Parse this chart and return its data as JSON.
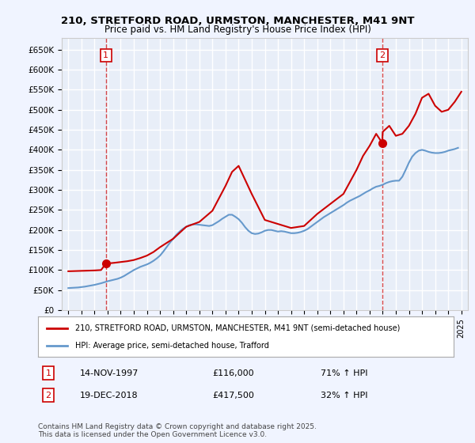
{
  "title_line1": "210, STRETFORD ROAD, URMSTON, MANCHESTER, M41 9NT",
  "title_line2": "Price paid vs. HM Land Registry's House Price Index (HPI)",
  "background_color": "#f0f4ff",
  "plot_bg_color": "#e8eef8",
  "grid_color": "#ffffff",
  "ylabel_ticks": [
    "£0",
    "£50K",
    "£100K",
    "£150K",
    "£200K",
    "£250K",
    "£300K",
    "£350K",
    "£400K",
    "£450K",
    "£500K",
    "£550K",
    "£600K",
    "£650K"
  ],
  "ytick_values": [
    0,
    50000,
    100000,
    150000,
    200000,
    250000,
    300000,
    350000,
    400000,
    450000,
    500000,
    550000,
    600000,
    650000
  ],
  "ylim": [
    0,
    680000
  ],
  "xlim_start": 1994.5,
  "xlim_end": 2025.5,
  "xtick_years": [
    1995,
    1996,
    1997,
    1998,
    1999,
    2000,
    2001,
    2002,
    2003,
    2004,
    2005,
    2006,
    2007,
    2008,
    2009,
    2010,
    2011,
    2012,
    2013,
    2014,
    2015,
    2016,
    2017,
    2018,
    2019,
    2020,
    2021,
    2022,
    2023,
    2024,
    2025
  ],
  "sale1_x": 1997.87,
  "sale1_y": 116000,
  "sale1_label": "1",
  "sale1_date": "14-NOV-1997",
  "sale1_price": "£116,000",
  "sale1_hpi": "71% ↑ HPI",
  "sale2_x": 2018.96,
  "sale2_y": 417500,
  "sale2_label": "2",
  "sale2_date": "19-DEC-2018",
  "sale2_price": "£417,500",
  "sale2_hpi": "32% ↑ HPI",
  "red_line_color": "#cc0000",
  "blue_line_color": "#6699cc",
  "sale_dot_color": "#cc0000",
  "legend_label_red": "210, STRETFORD ROAD, URMSTON, MANCHESTER, M41 9NT (semi-detached house)",
  "legend_label_blue": "HPI: Average price, semi-detached house, Trafford",
  "footer_text": "Contains HM Land Registry data © Crown copyright and database right 2025.\nThis data is licensed under the Open Government Licence v3.0.",
  "hpi_data_x": [
    1995.0,
    1995.25,
    1995.5,
    1995.75,
    1996.0,
    1996.25,
    1996.5,
    1996.75,
    1997.0,
    1997.25,
    1997.5,
    1997.75,
    1998.0,
    1998.25,
    1998.5,
    1998.75,
    1999.0,
    1999.25,
    1999.5,
    1999.75,
    2000.0,
    2000.25,
    2000.5,
    2000.75,
    2001.0,
    2001.25,
    2001.5,
    2001.75,
    2002.0,
    2002.25,
    2002.5,
    2002.75,
    2003.0,
    2003.25,
    2003.5,
    2003.75,
    2004.0,
    2004.25,
    2004.5,
    2004.75,
    2005.0,
    2005.25,
    2005.5,
    2005.75,
    2006.0,
    2006.25,
    2006.5,
    2006.75,
    2007.0,
    2007.25,
    2007.5,
    2007.75,
    2008.0,
    2008.25,
    2008.5,
    2008.75,
    2009.0,
    2009.25,
    2009.5,
    2009.75,
    2010.0,
    2010.25,
    2010.5,
    2010.75,
    2011.0,
    2011.25,
    2011.5,
    2011.75,
    2012.0,
    2012.25,
    2012.5,
    2012.75,
    2013.0,
    2013.25,
    2013.5,
    2013.75,
    2014.0,
    2014.25,
    2014.5,
    2014.75,
    2015.0,
    2015.25,
    2015.5,
    2015.75,
    2016.0,
    2016.25,
    2016.5,
    2016.75,
    2017.0,
    2017.25,
    2017.5,
    2017.75,
    2018.0,
    2018.25,
    2018.5,
    2018.75,
    2019.0,
    2019.25,
    2019.5,
    2019.75,
    2020.0,
    2020.25,
    2020.5,
    2020.75,
    2021.0,
    2021.25,
    2021.5,
    2021.75,
    2022.0,
    2022.25,
    2022.5,
    2022.75,
    2023.0,
    2023.25,
    2023.5,
    2023.75,
    2024.0,
    2024.25,
    2024.5,
    2024.75
  ],
  "hpi_data_y": [
    55000,
    55500,
    56000,
    56500,
    57500,
    58500,
    60000,
    61500,
    63000,
    65000,
    67000,
    69500,
    72000,
    74000,
    76000,
    78000,
    81000,
    85000,
    90000,
    95000,
    100000,
    104000,
    108000,
    111000,
    114000,
    118000,
    123000,
    129000,
    136000,
    146000,
    157000,
    168000,
    178000,
    188000,
    196000,
    203000,
    208000,
    212000,
    214000,
    214000,
    213000,
    212000,
    211000,
    210000,
    212000,
    217000,
    222000,
    228000,
    233000,
    238000,
    238000,
    233000,
    227000,
    218000,
    207000,
    198000,
    192000,
    190000,
    191000,
    194000,
    198000,
    200000,
    200000,
    198000,
    196000,
    197000,
    196000,
    194000,
    192000,
    192000,
    193000,
    195000,
    198000,
    202000,
    208000,
    214000,
    220000,
    226000,
    232000,
    237000,
    242000,
    247000,
    252000,
    257000,
    262000,
    268000,
    273000,
    277000,
    281000,
    285000,
    290000,
    295000,
    299000,
    304000,
    308000,
    310000,
    313000,
    317000,
    320000,
    322000,
    323000,
    323000,
    333000,
    350000,
    368000,
    383000,
    392000,
    398000,
    400000,
    398000,
    395000,
    393000,
    392000,
    392000,
    393000,
    395000,
    398000,
    400000,
    402000,
    405000
  ],
  "price_line_x": [
    1995.0,
    1995.5,
    1996.0,
    1996.5,
    1997.0,
    1997.5,
    1997.87,
    1997.87,
    1998.5,
    1999.0,
    1999.5,
    2000.0,
    2000.5,
    2001.0,
    2001.5,
    2002.0,
    2003.0,
    2004.0,
    2005.0,
    2006.0,
    2007.0,
    2007.5,
    2008.0,
    2009.0,
    2010.0,
    2011.0,
    2012.0,
    2013.0,
    2014.0,
    2015.0,
    2016.0,
    2017.0,
    2017.5,
    2018.0,
    2018.5,
    2018.96,
    2018.96,
    2019.0,
    2019.5,
    2020.0,
    2020.5,
    2021.0,
    2021.5,
    2022.0,
    2022.5,
    2023.0,
    2023.5,
    2024.0,
    2024.5,
    2025.0
  ],
  "price_line_y": [
    97000,
    97500,
    98000,
    98500,
    99000,
    100000,
    116000,
    116000,
    118000,
    120000,
    122000,
    125000,
    130000,
    136000,
    145000,
    157000,
    178000,
    208000,
    220000,
    248000,
    310000,
    345000,
    360000,
    290000,
    225000,
    215000,
    205000,
    210000,
    240000,
    265000,
    290000,
    350000,
    385000,
    410000,
    440000,
    417500,
    417500,
    445000,
    460000,
    435000,
    440000,
    460000,
    490000,
    530000,
    540000,
    510000,
    495000,
    500000,
    520000,
    545000
  ]
}
